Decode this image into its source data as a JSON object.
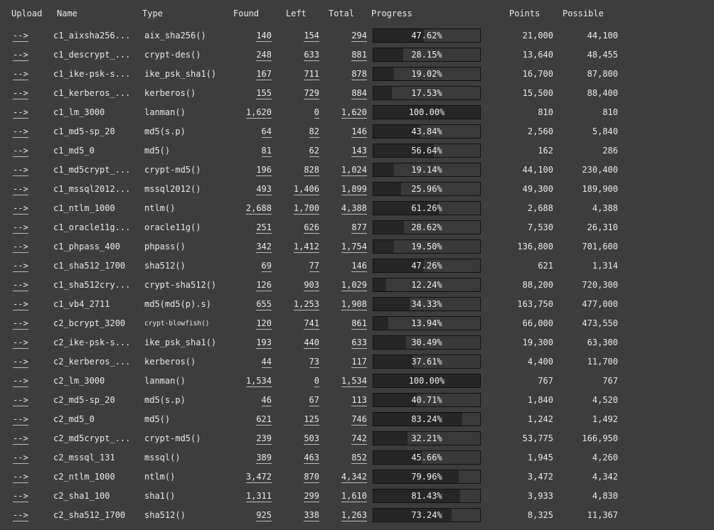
{
  "columns": {
    "upload": "Upload",
    "name": "Name",
    "type": "Type",
    "found": "Found",
    "left": "Left",
    "total": "Total",
    "progress": "Progress",
    "points": "Points",
    "possible": "Possible"
  },
  "upload_link": "-->",
  "rows": [
    {
      "name": "c1_aixsha256...",
      "type": "aix_sha256()",
      "found": "140",
      "left": "154",
      "total": "294",
      "progress": "47.62%",
      "points": "21,000",
      "possible": "44,100"
    },
    {
      "name": "c1_descrypt_...",
      "type": "crypt-des()",
      "found": "248",
      "left": "633",
      "total": "881",
      "progress": "28.15%",
      "points": "13,640",
      "possible": "48,455"
    },
    {
      "name": "c1_ike-psk-s...",
      "type": "ike_psk_sha1()",
      "found": "167",
      "left": "711",
      "total": "878",
      "progress": "19.02%",
      "points": "16,700",
      "possible": "87,800"
    },
    {
      "name": "c1_kerberos_...",
      "type": "kerberos()",
      "found": "155",
      "left": "729",
      "total": "884",
      "progress": "17.53%",
      "points": "15,500",
      "possible": "88,400"
    },
    {
      "name": "c1_lm_3000",
      "type": "lanman()",
      "found": "1,620",
      "left": "0",
      "total": "1,620",
      "progress": "100.00%",
      "points": "810",
      "possible": "810"
    },
    {
      "name": "c1_md5-sp_20",
      "type": "md5(s.p)",
      "found": "64",
      "left": "82",
      "total": "146",
      "progress": "43.84%",
      "points": "2,560",
      "possible": "5,840"
    },
    {
      "name": "c1_md5_0",
      "type": "md5()",
      "found": "81",
      "left": "62",
      "total": "143",
      "progress": "56.64%",
      "points": "162",
      "possible": "286"
    },
    {
      "name": "c1_md5crypt_...",
      "type": "crypt-md5()",
      "found": "196",
      "left": "828",
      "total": "1,024",
      "progress": "19.14%",
      "points": "44,100",
      "possible": "230,400"
    },
    {
      "name": "c1_mssql2012...",
      "type": "mssql2012()",
      "found": "493",
      "left": "1,406",
      "total": "1,899",
      "progress": "25.96%",
      "points": "49,300",
      "possible": "189,900"
    },
    {
      "name": "c1_ntlm_1000",
      "type": "ntlm()",
      "found": "2,688",
      "left": "1,700",
      "total": "4,388",
      "progress": "61.26%",
      "points": "2,688",
      "possible": "4,388"
    },
    {
      "name": "c1_oracle11g...",
      "type": "oracle11g()",
      "found": "251",
      "left": "626",
      "total": "877",
      "progress": "28.62%",
      "points": "7,530",
      "possible": "26,310"
    },
    {
      "name": "c1_phpass_400",
      "type": "phpass()",
      "found": "342",
      "left": "1,412",
      "total": "1,754",
      "progress": "19.50%",
      "points": "136,800",
      "possible": "701,600"
    },
    {
      "name": "c1_sha512_1700",
      "type": "sha512()",
      "found": "69",
      "left": "77",
      "total": "146",
      "progress": "47.26%",
      "points": "621",
      "possible": "1,314"
    },
    {
      "name": "c1_sha512cry...",
      "type": "crypt-sha512()",
      "found": "126",
      "left": "903",
      "total": "1,029",
      "progress": "12.24%",
      "points": "88,200",
      "possible": "720,300"
    },
    {
      "name": "c1_vb4_2711",
      "type": "md5(md5(p).s)",
      "found": "655",
      "left": "1,253",
      "total": "1,908",
      "progress": "34.33%",
      "points": "163,750",
      "possible": "477,000"
    },
    {
      "name": "c2_bcrypt_3200",
      "type": "crypt-blowfish()",
      "small": true,
      "found": "120",
      "left": "741",
      "total": "861",
      "progress": "13.94%",
      "points": "66,000",
      "possible": "473,550"
    },
    {
      "name": "c2_ike-psk-s...",
      "type": "ike_psk_sha1()",
      "found": "193",
      "left": "440",
      "total": "633",
      "progress": "30.49%",
      "points": "19,300",
      "possible": "63,300"
    },
    {
      "name": "c2_kerberos_...",
      "type": "kerberos()",
      "found": "44",
      "left": "73",
      "total": "117",
      "progress": "37.61%",
      "points": "4,400",
      "possible": "11,700"
    },
    {
      "name": "c2_lm_3000",
      "type": "lanman()",
      "found": "1,534",
      "left": "0",
      "total": "1,534",
      "progress": "100.00%",
      "points": "767",
      "possible": "767"
    },
    {
      "name": "c2_md5-sp_20",
      "type": "md5(s.p)",
      "found": "46",
      "left": "67",
      "total": "113",
      "progress": "40.71%",
      "points": "1,840",
      "possible": "4,520"
    },
    {
      "name": "c2_md5_0",
      "type": "md5()",
      "found": "621",
      "left": "125",
      "total": "746",
      "progress": "83.24%",
      "points": "1,242",
      "possible": "1,492"
    },
    {
      "name": "c2_md5crypt_...",
      "type": "crypt-md5()",
      "found": "239",
      "left": "503",
      "total": "742",
      "progress": "32.21%",
      "points": "53,775",
      "possible": "166,950"
    },
    {
      "name": "c2_mssql_131",
      "type": "mssql()",
      "found": "389",
      "left": "463",
      "total": "852",
      "progress": "45.66%",
      "points": "1,945",
      "possible": "4,260"
    },
    {
      "name": "c2_ntlm_1000",
      "type": "ntlm()",
      "found": "3,472",
      "left": "870",
      "total": "4,342",
      "progress": "79.96%",
      "points": "3,472",
      "possible": "4,342"
    },
    {
      "name": "c2_sha1_100",
      "type": "sha1()",
      "found": "1,311",
      "left": "299",
      "total": "1,610",
      "progress": "81.43%",
      "points": "3,933",
      "possible": "4,830"
    },
    {
      "name": "c2_sha512_1700",
      "type": "sha512()",
      "found": "925",
      "left": "338",
      "total": "1,263",
      "progress": "73.24%",
      "points": "8,325",
      "possible": "11,367"
    }
  ]
}
